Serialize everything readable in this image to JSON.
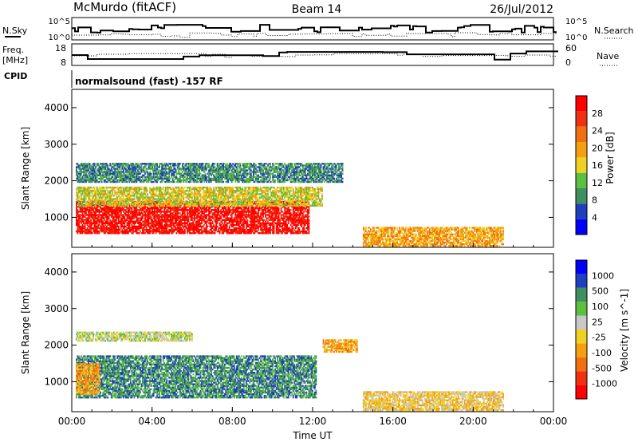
{
  "header": {
    "station": "McMurdo (fitACF)",
    "beam": "Beam 14",
    "date": "26/Jul/2012"
  },
  "panels": {
    "nsky": {
      "label": "N.Sky",
      "ticks_left": [
        "10^5",
        "10^0"
      ],
      "right_label": "N.Search",
      "ticks_right": [
        "10^5",
        "10^0"
      ]
    },
    "freq": {
      "label_line1": "Freq.",
      "label_line2": "[MHz]",
      "ticks_left": [
        "18",
        "8"
      ],
      "right_label": "Nave",
      "ticks_right": [
        "60",
        "0"
      ]
    },
    "cpid": {
      "label": "CPID",
      "text": "normalsound (fast) -157 RF"
    }
  },
  "colors": {
    "power": [
      "#0000ff",
      "#1f3fbf",
      "#3f8f5f",
      "#5cbf3f",
      "#f0d020",
      "#f5a010",
      "#f07010",
      "#f03010",
      "#ff0000"
    ],
    "velocity": [
      "#ff0000",
      "#f03010",
      "#f07010",
      "#f5a010",
      "#f0d020",
      "#c8c8c8",
      "#5cbf3f",
      "#3f8f5f",
      "#1f3fbf",
      "#0000ff"
    ]
  },
  "chart_data": [
    {
      "type": "heatmap",
      "quantity": "power",
      "ylabel": "Slant Range [km]",
      "ylim": [
        180,
        4500
      ],
      "y_ticks": [
        1000,
        2000,
        3000,
        4000
      ],
      "xlim": [
        0,
        24
      ],
      "x_tick_labels": [
        "00:00",
        "04:00",
        "08:00",
        "12:00",
        "16:00",
        "20:00",
        "00:00"
      ],
      "colorbar_label": "Power [dB]",
      "colorbar_ticks": [
        "28",
        "24",
        "20",
        "16",
        "12",
        "8",
        "4"
      ],
      "regions": [
        {
          "t": [
            0.2,
            11.8
          ],
          "r": [
            550,
            1450
          ],
          "level": 8
        },
        {
          "t": [
            0.2,
            12.5
          ],
          "r": [
            1300,
            1800
          ],
          "level": 4
        },
        {
          "t": [
            0.2,
            13.5
          ],
          "r": [
            1950,
            2450
          ],
          "level": 2
        },
        {
          "t": [
            14.5,
            21.5
          ],
          "r": [
            200,
            700
          ],
          "level": 5
        }
      ]
    },
    {
      "type": "heatmap",
      "quantity": "velocity",
      "ylabel": "Slant Range [km]",
      "ylim": [
        180,
        4500
      ],
      "y_ticks": [
        1000,
        2000,
        3000,
        4000
      ],
      "xlim": [
        0,
        24
      ],
      "x_tick_labels": [
        "00:00",
        "04:00",
        "08:00",
        "12:00",
        "16:00",
        "20:00",
        "00:00"
      ],
      "xlabel": "Time UT",
      "colorbar_label": "Velocity [m s^-1]",
      "colorbar_ticks": [
        "1000",
        "500",
        "100",
        "25",
        "-25",
        "-100",
        "-500",
        "-1000"
      ],
      "regions": [
        {
          "t": [
            0.2,
            12.2
          ],
          "r": [
            550,
            1700
          ],
          "level": 7
        },
        {
          "t": [
            0.2,
            1.4
          ],
          "r": [
            650,
            1500
          ],
          "level": 3
        },
        {
          "t": [
            12.5,
            14.2
          ],
          "r": [
            1800,
            2150
          ],
          "level": 3
        },
        {
          "t": [
            0.2,
            6.0
          ],
          "r": [
            2100,
            2350
          ],
          "level": 5
        },
        {
          "t": [
            14.5,
            21.5
          ],
          "r": [
            200,
            700
          ],
          "level": 4
        }
      ]
    }
  ]
}
